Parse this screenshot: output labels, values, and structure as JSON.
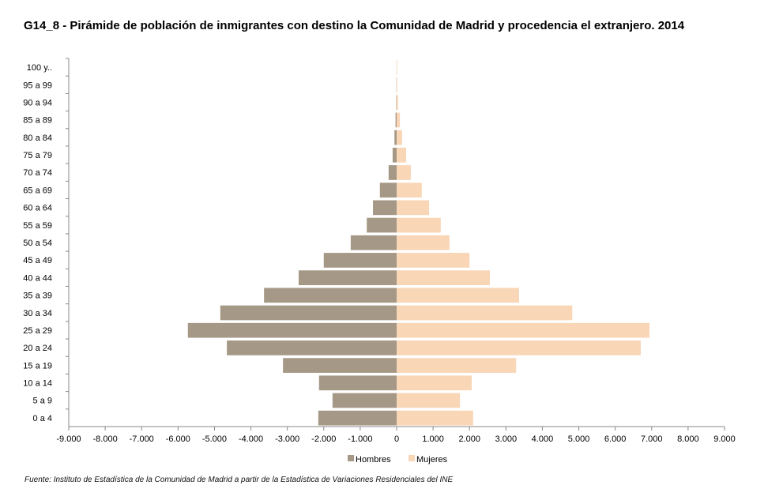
{
  "chart_data": {
    "type": "bar",
    "orientation": "horizontal-pyramid",
    "title": "G14_8 - Pirámide de población de inmigrantes con destino la Comunidad de Madrid y procedencia el extranjero.  2014",
    "source": "Fuente: Instituto de Estadística de la  Comunidad de Madrid a partir de la  Estadística de Variaciones Residenciales del  INE",
    "categories": [
      "0 a 4",
      "5 a 9",
      "10 a 14",
      "15 a 19",
      "20 a 24",
      "25 a 29",
      "30 a 34",
      "35 a 39",
      "40 a 44",
      "45 a 49",
      "50 a 54",
      "55 a 59",
      "60 a 64",
      "65 a 69",
      "70 a 74",
      "75 a 79",
      "80 a 84",
      "85 a 89",
      "90 a 94",
      "95 a 99",
      "100 y.."
    ],
    "series": [
      {
        "name": "Hombres",
        "color": "#a69886",
        "values": [
          -2150,
          -1760,
          -2130,
          -3120,
          -4660,
          -5730,
          -4840,
          -3640,
          -2690,
          -2000,
          -1260,
          -820,
          -650,
          -460,
          -220,
          -110,
          -60,
          -30,
          -10,
          -5,
          -2
        ]
      },
      {
        "name": "Mujeres",
        "color": "#f8d6b6",
        "values": [
          2100,
          1740,
          2060,
          3280,
          6700,
          6940,
          4820,
          3360,
          2560,
          2000,
          1450,
          1210,
          890,
          690,
          390,
          260,
          150,
          90,
          40,
          15,
          5
        ]
      }
    ],
    "xlim": [
      -9000,
      9000
    ],
    "xticks": [
      -9000,
      -8000,
      -7000,
      -6000,
      -5000,
      -4000,
      -3000,
      -2000,
      -1000,
      0,
      1000,
      2000,
      3000,
      4000,
      5000,
      6000,
      7000,
      8000,
      9000
    ],
    "xtick_labels": [
      "-9.000",
      "-8.000",
      "-7.000",
      "-6.000",
      "-5.000",
      "-4.000",
      "-3.000",
      "-2.000",
      "-1.000",
      "0",
      "1.000",
      "2.000",
      "3.000",
      "4.000",
      "5.000",
      "6.000",
      "7.000",
      "8.000",
      "9.000"
    ],
    "legend_position": "bottom",
    "grid": false
  }
}
